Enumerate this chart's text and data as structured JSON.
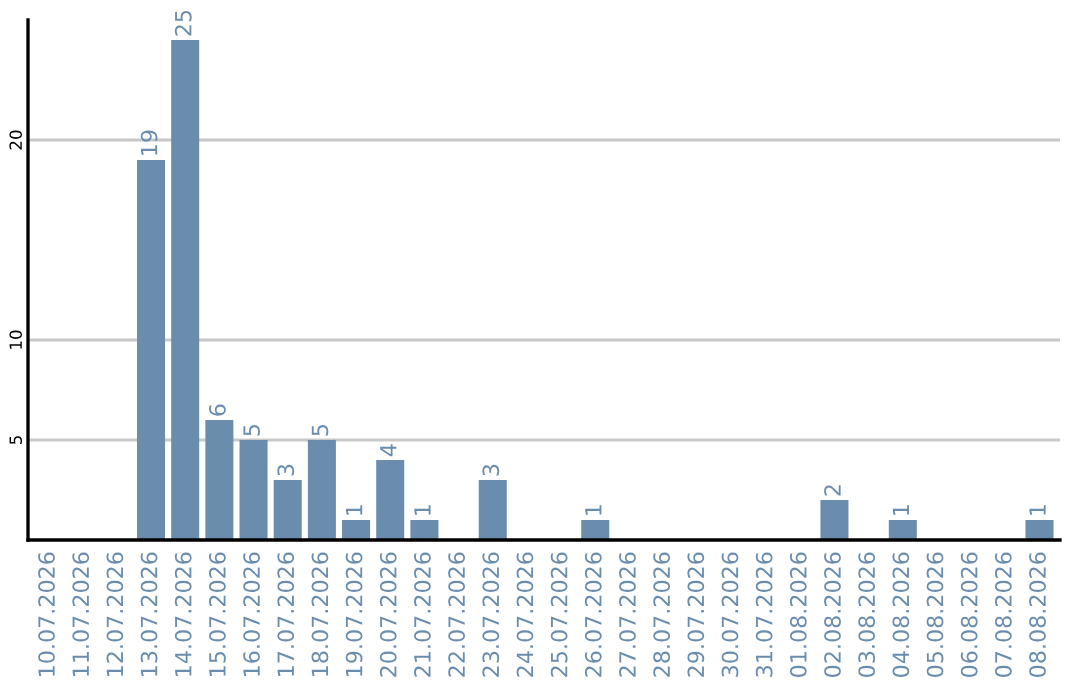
{
  "chart_data": {
    "type": "bar",
    "categories": [
      "10.07.2026",
      "11.07.2026",
      "12.07.2026",
      "13.07.2026",
      "14.07.2026",
      "15.07.2026",
      "16.07.2026",
      "17.07.2026",
      "18.07.2026",
      "19.07.2026",
      "20.07.2026",
      "21.07.2026",
      "22.07.2026",
      "23.07.2026",
      "24.07.2026",
      "25.07.2026",
      "26.07.2026",
      "27.07.2026",
      "28.07.2026",
      "29.07.2026",
      "30.07.2026",
      "31.07.2026",
      "01.08.2026",
      "02.08.2026",
      "03.08.2026",
      "04.08.2026",
      "05.08.2026",
      "06.08.2026",
      "07.08.2026",
      "08.08.2026"
    ],
    "values": [
      0,
      0,
      0,
      19,
      25,
      6,
      5,
      3,
      5,
      1,
      4,
      1,
      0,
      3,
      0,
      0,
      1,
      0,
      0,
      0,
      0,
      0,
      0,
      2,
      0,
      1,
      0,
      0,
      0,
      1
    ],
    "value_labels": [
      null,
      null,
      null,
      "19",
      "25",
      "6",
      "5",
      "3",
      "5",
      "1",
      "4",
      "1",
      null,
      "3",
      null,
      null,
      "1",
      null,
      null,
      null,
      null,
      null,
      null,
      "2",
      null,
      "1",
      null,
      null,
      null,
      "1"
    ],
    "color": "#6a8cad",
    "ylim": [
      0,
      26
    ],
    "yticks": [
      5,
      10,
      20
    ],
    "grid": "y"
  }
}
